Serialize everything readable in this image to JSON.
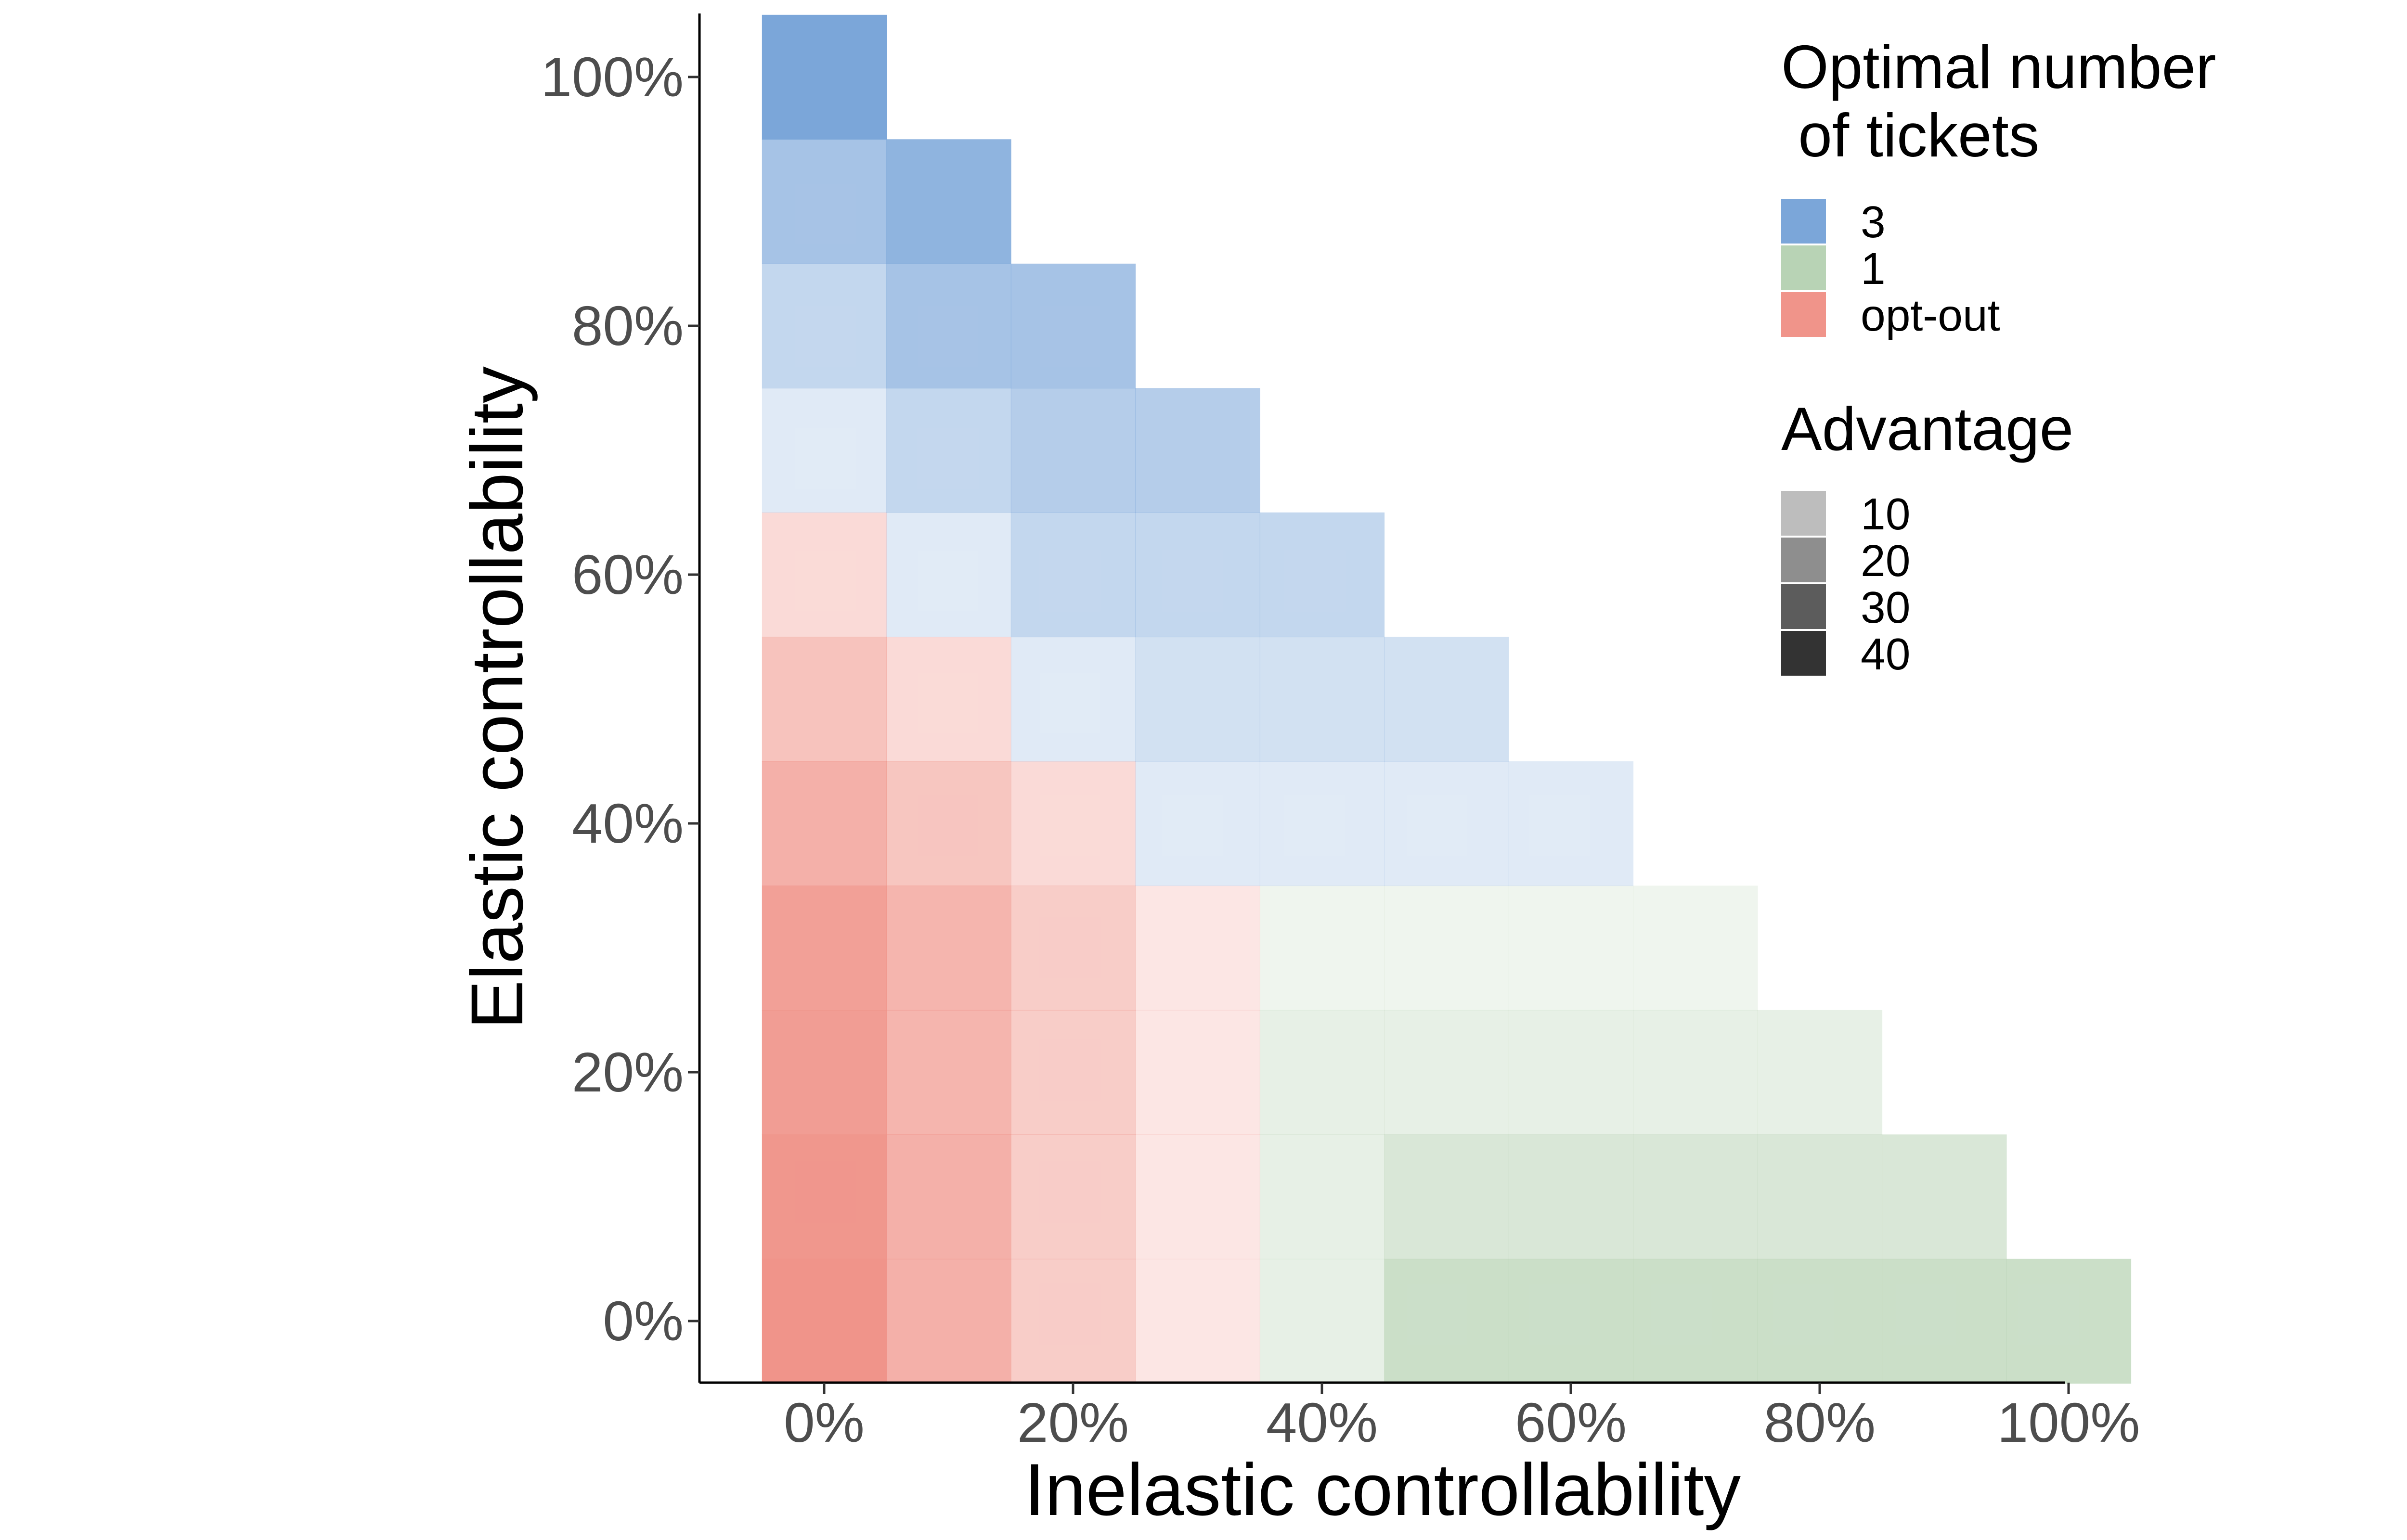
{
  "chart_data": {
    "type": "heatmap",
    "xlabel": "Inelastic controllability",
    "ylabel": "Elastic controllability",
    "x_ticks": [
      "0%",
      "20%",
      "40%",
      "60%",
      "80%",
      "100%"
    ],
    "y_ticks": [
      "0%",
      "20%",
      "40%",
      "60%",
      "80%",
      "100%"
    ],
    "x_values": [
      0,
      10,
      20,
      30,
      40,
      50,
      60,
      70,
      80,
      90,
      100
    ],
    "y_values": [
      0,
      10,
      20,
      30,
      40,
      50,
      60,
      70,
      80,
      90,
      100
    ],
    "xlim": [
      0,
      100
    ],
    "ylim": [
      0,
      100
    ],
    "grid": false,
    "legend_placement": "top-right",
    "fill_legend": {
      "title_lines": [
        "Optimal number",
        " of tickets"
      ],
      "entries": [
        {
          "key": "three",
          "label": "3",
          "color": "#7ba6d9"
        },
        {
          "key": "one",
          "label": "1",
          "color": "#b8d3b5"
        },
        {
          "key": "optout",
          "label": "opt-out",
          "color": "#f0948a"
        }
      ]
    },
    "alpha_legend": {
      "title": "Advantage",
      "entries": [
        {
          "label": "10",
          "color": "#bdbdbd"
        },
        {
          "label": "20",
          "color": "#8e8e8e"
        },
        {
          "label": "30",
          "color": "#5c5c5c"
        },
        {
          "label": "40",
          "color": "#333333"
        }
      ]
    },
    "cells": [
      {
        "x": 0,
        "y": 0,
        "ticket": "optout",
        "advantage": 40
      },
      {
        "x": 10,
        "y": 0,
        "ticket": "optout",
        "advantage": 28
      },
      {
        "x": 20,
        "y": 0,
        "ticket": "optout",
        "advantage": 16
      },
      {
        "x": 30,
        "y": 0,
        "ticket": "optout",
        "advantage": 5
      },
      {
        "x": 40,
        "y": 0,
        "ticket": "one",
        "advantage": 10
      },
      {
        "x": 50,
        "y": 0,
        "ticket": "one",
        "advantage": 28
      },
      {
        "x": 60,
        "y": 0,
        "ticket": "one",
        "advantage": 28
      },
      {
        "x": 70,
        "y": 0,
        "ticket": "one",
        "advantage": 28
      },
      {
        "x": 80,
        "y": 0,
        "ticket": "one",
        "advantage": 28
      },
      {
        "x": 90,
        "y": 0,
        "ticket": "one",
        "advantage": 28
      },
      {
        "x": 100,
        "y": 0,
        "ticket": "one",
        "advantage": 28
      },
      {
        "x": 0,
        "y": 10,
        "ticket": "optout",
        "advantage": 39
      },
      {
        "x": 10,
        "y": 10,
        "ticket": "optout",
        "advantage": 28
      },
      {
        "x": 20,
        "y": 10,
        "ticket": "optout",
        "advantage": 16
      },
      {
        "x": 30,
        "y": 10,
        "ticket": "optout",
        "advantage": 5
      },
      {
        "x": 40,
        "y": 10,
        "ticket": "one",
        "advantage": 10
      },
      {
        "x": 50,
        "y": 10,
        "ticket": "one",
        "advantage": 19
      },
      {
        "x": 60,
        "y": 10,
        "ticket": "one",
        "advantage": 19
      },
      {
        "x": 70,
        "y": 10,
        "ticket": "one",
        "advantage": 19
      },
      {
        "x": 80,
        "y": 10,
        "ticket": "one",
        "advantage": 19
      },
      {
        "x": 90,
        "y": 10,
        "ticket": "one",
        "advantage": 19
      },
      {
        "x": 0,
        "y": 20,
        "ticket": "optout",
        "advantage": 36
      },
      {
        "x": 10,
        "y": 20,
        "ticket": "optout",
        "advantage": 26
      },
      {
        "x": 20,
        "y": 20,
        "ticket": "optout",
        "advantage": 16
      },
      {
        "x": 30,
        "y": 20,
        "ticket": "optout",
        "advantage": 5
      },
      {
        "x": 40,
        "y": 20,
        "ticket": "one",
        "advantage": 10
      },
      {
        "x": 50,
        "y": 20,
        "ticket": "one",
        "advantage": 10
      },
      {
        "x": 60,
        "y": 20,
        "ticket": "one",
        "advantage": 10
      },
      {
        "x": 70,
        "y": 20,
        "ticket": "one",
        "advantage": 10
      },
      {
        "x": 80,
        "y": 20,
        "ticket": "one",
        "advantage": 10
      },
      {
        "x": 0,
        "y": 30,
        "ticket": "optout",
        "advantage": 35
      },
      {
        "x": 10,
        "y": 30,
        "ticket": "optout",
        "advantage": 26
      },
      {
        "x": 20,
        "y": 30,
        "ticket": "optout",
        "advantage": 16
      },
      {
        "x": 30,
        "y": 30,
        "ticket": "optout",
        "advantage": 5
      },
      {
        "x": 40,
        "y": 30,
        "ticket": "one",
        "advantage": 5
      },
      {
        "x": 50,
        "y": 30,
        "ticket": "one",
        "advantage": 5
      },
      {
        "x": 60,
        "y": 30,
        "ticket": "one",
        "advantage": 5
      },
      {
        "x": 70,
        "y": 30,
        "ticket": "one",
        "advantage": 5
      },
      {
        "x": 0,
        "y": 40,
        "ticket": "optout",
        "advantage": 28
      },
      {
        "x": 10,
        "y": 40,
        "ticket": "optout",
        "advantage": 19
      },
      {
        "x": 20,
        "y": 40,
        "ticket": "optout",
        "advantage": 10
      },
      {
        "x": 30,
        "y": 40,
        "ticket": "three",
        "advantage": 5
      },
      {
        "x": 40,
        "y": 40,
        "ticket": "three",
        "advantage": 5
      },
      {
        "x": 50,
        "y": 40,
        "ticket": "three",
        "advantage": 5
      },
      {
        "x": 60,
        "y": 40,
        "ticket": "three",
        "advantage": 5
      },
      {
        "x": 0,
        "y": 50,
        "ticket": "optout",
        "advantage": 20
      },
      {
        "x": 10,
        "y": 50,
        "ticket": "optout",
        "advantage": 10
      },
      {
        "x": 20,
        "y": 50,
        "ticket": "three",
        "advantage": 5
      },
      {
        "x": 30,
        "y": 50,
        "ticket": "three",
        "advantage": 10
      },
      {
        "x": 40,
        "y": 50,
        "ticket": "three",
        "advantage": 10
      },
      {
        "x": 50,
        "y": 50,
        "ticket": "three",
        "advantage": 10
      },
      {
        "x": 0,
        "y": 60,
        "ticket": "optout",
        "advantage": 10
      },
      {
        "x": 10,
        "y": 60,
        "ticket": "three",
        "advantage": 5
      },
      {
        "x": 20,
        "y": 60,
        "ticket": "three",
        "advantage": 15
      },
      {
        "x": 30,
        "y": 60,
        "ticket": "three",
        "advantage": 15
      },
      {
        "x": 40,
        "y": 60,
        "ticket": "three",
        "advantage": 15
      },
      {
        "x": 0,
        "y": 70,
        "ticket": "three",
        "advantage": 5
      },
      {
        "x": 10,
        "y": 70,
        "ticket": "three",
        "advantage": 15
      },
      {
        "x": 20,
        "y": 70,
        "ticket": "three",
        "advantage": 20
      },
      {
        "x": 30,
        "y": 70,
        "ticket": "three",
        "advantage": 20
      },
      {
        "x": 0,
        "y": 80,
        "ticket": "three",
        "advantage": 15
      },
      {
        "x": 10,
        "y": 80,
        "ticket": "three",
        "advantage": 25
      },
      {
        "x": 20,
        "y": 80,
        "ticket": "three",
        "advantage": 25
      },
      {
        "x": 0,
        "y": 90,
        "ticket": "three",
        "advantage": 25
      },
      {
        "x": 10,
        "y": 90,
        "ticket": "three",
        "advantage": 33
      },
      {
        "x": 0,
        "y": 100,
        "ticket": "three",
        "advantage": 40
      }
    ]
  }
}
